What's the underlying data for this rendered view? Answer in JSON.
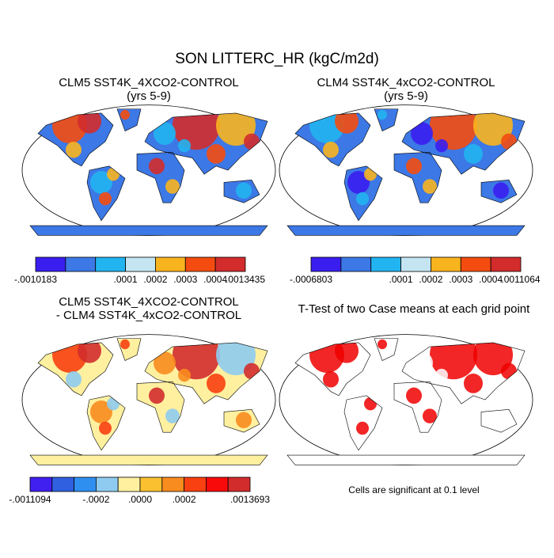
{
  "title": "SON LITTERC_HR (kgC/m2d)",
  "panels": [
    {
      "title": "CLM5 SST4K_4XCO2-CONTROL",
      "subtitle": "(yrs 5-9)",
      "colorbar": {
        "colors": [
          "#3a1ef0",
          "#3c78e6",
          "#22b4f0",
          "#c4e4f2",
          "#f8b41e",
          "#f44c10",
          "#d22c2c"
        ],
        "labels": [
          "-.0010183",
          ".0001",
          ".0002",
          ".0003",
          ".0004",
          ".0013435"
        ]
      }
    },
    {
      "title": "CLM4 SST4K_4xCO2-CONTROL",
      "subtitle": "(yrs 5-9)",
      "colorbar": {
        "colors": [
          "#3a1ef0",
          "#3c78e6",
          "#22b4f0",
          "#c4e4f2",
          "#f8b41e",
          "#f44c10",
          "#d22c2c"
        ],
        "labels": [
          "-.0006803",
          ".0001",
          ".0002",
          ".0003",
          ".0004",
          ".0011064"
        ]
      }
    },
    {
      "title": "CLM5 SST4K_4XCO2-CONTROL",
      "subtitle": "- CLM4 SST4K_4xCO2-CONTROL",
      "colorbar": {
        "colors": [
          "#4020f0",
          "#3060e0",
          "#2f8ff0",
          "#8fcbf0",
          "#fff0a0",
          "#fbc030",
          "#f88c1e",
          "#f84010",
          "#f80a0a",
          "#d22c2c"
        ],
        "labels": [
          "-.0011094",
          "-.0002",
          ".0000",
          ".0002",
          ".0013693"
        ]
      }
    },
    {
      "title": "T-Test of two Case means at each grid point",
      "note": "Cells are significant at 0.1 level"
    }
  ]
}
